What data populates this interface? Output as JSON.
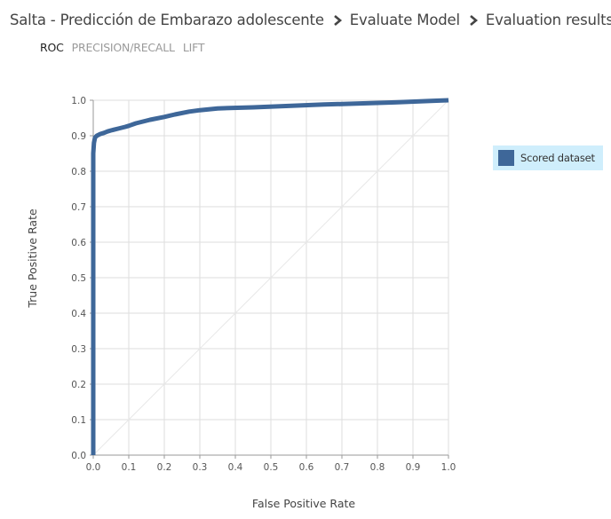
{
  "breadcrumb": {
    "items": [
      "Salta - Predicción de Embarazo adolescente",
      "Evaluate Model",
      "Evaluation results"
    ],
    "separator_icon": "chevron-right-icon"
  },
  "tabs": [
    {
      "label": "ROC",
      "active": true
    },
    {
      "label": "PRECISION/RECALL",
      "active": false
    },
    {
      "label": "LIFT",
      "active": false
    }
  ],
  "colors": {
    "series": "#3e6799",
    "legend_background": "#cfeefc",
    "grid": "#dddddd",
    "diagonal": "#e8e8e8",
    "axis": "#9a9a9a",
    "active_tab": "#222222",
    "inactive_tab": "#9a9a9a"
  },
  "chart_data": {
    "type": "line",
    "title": "",
    "xlabel": "False Positive Rate",
    "ylabel": "True Positive Rate",
    "xlim": [
      0,
      1
    ],
    "ylim": [
      0,
      1
    ],
    "x_ticks": [
      "0.0",
      "0.1",
      "0.2",
      "0.3",
      "0.4",
      "0.5",
      "0.6",
      "0.7",
      "0.8",
      "0.9",
      "1.0"
    ],
    "y_ticks": [
      "0.0",
      "0.1",
      "0.2",
      "0.3",
      "0.4",
      "0.5",
      "0.6",
      "0.7",
      "0.8",
      "0.9",
      "1.0"
    ],
    "grid": true,
    "diagonal_reference": true,
    "legend_position": "right",
    "series": [
      {
        "name": "Scored dataset",
        "x": [
          0,
          0,
          0,
          0.002,
          0.005,
          0.01,
          0.02,
          0.03,
          0.04,
          0.05,
          0.07,
          0.09,
          0.1,
          0.12,
          0.14,
          0.16,
          0.2,
          0.23,
          0.27,
          0.3,
          0.35,
          0.45,
          0.55,
          0.65,
          0.75,
          0.85,
          0.95,
          1.0
        ],
        "y": [
          0,
          0.5,
          0.85,
          0.88,
          0.895,
          0.9,
          0.905,
          0.908,
          0.912,
          0.915,
          0.92,
          0.925,
          0.928,
          0.935,
          0.94,
          0.945,
          0.953,
          0.96,
          0.968,
          0.972,
          0.977,
          0.98,
          0.984,
          0.988,
          0.991,
          0.994,
          0.998,
          1.0
        ]
      }
    ]
  }
}
